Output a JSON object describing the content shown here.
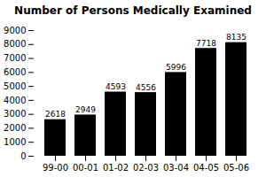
{
  "chart_data": {
    "type": "bar",
    "title": "Number of Persons Medically Examined",
    "categories": [
      "99-00",
      "00-01",
      "01-02",
      "02-03",
      "03-04",
      "04-05",
      "05-06"
    ],
    "values": [
      2618,
      2949,
      4593,
      4556,
      5996,
      7718,
      8135
    ],
    "ylim": [
      0,
      9000
    ],
    "yticks": [
      0,
      1000,
      2000,
      3000,
      4000,
      5000,
      6000,
      7000,
      8000,
      9000
    ],
    "grid": false,
    "data_labels": true
  }
}
